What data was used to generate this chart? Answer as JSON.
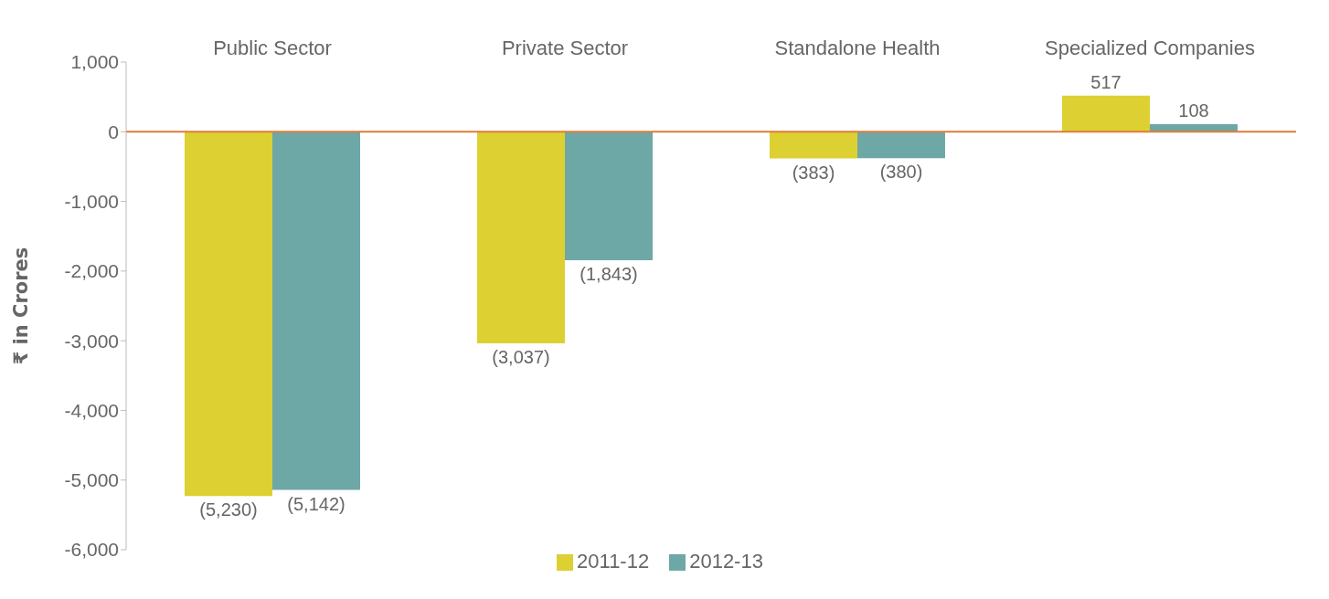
{
  "chart_data": {
    "type": "bar",
    "categories": [
      "Public Sector",
      "Private Sector",
      "Standalone Health",
      "Specialized Companies"
    ],
    "series": [
      {
        "name": "2011-12",
        "color": "#dcd032",
        "values": [
          -5230,
          -3037,
          -383,
          517
        ],
        "value_labels": [
          "(5,230)",
          "(3,037)",
          "(383)",
          "517"
        ]
      },
      {
        "name": "2012-13",
        "color": "#6ea8a6",
        "values": [
          -5142,
          -1843,
          -380,
          108
        ],
        "value_labels": [
          "(5,142)",
          "(1,843)",
          "(380)",
          "108"
        ]
      }
    ],
    "ylabel": "₹ in Crores",
    "ylim": [
      -6000,
      1000
    ],
    "yticks": [
      {
        "value": -6000,
        "label": "-6,000"
      },
      {
        "value": -5000,
        "label": "-5,000"
      },
      {
        "value": -4000,
        "label": "-4,000"
      },
      {
        "value": -3000,
        "label": "-3,000"
      },
      {
        "value": -2000,
        "label": "-2,000"
      },
      {
        "value": -1000,
        "label": "-1,000"
      },
      0,
      {
        "value": 1000,
        "label": "1,000"
      }
    ],
    "ref_lines": [
      {
        "axis": "y",
        "value": 0,
        "color": "#e07b39"
      }
    ],
    "grid": false,
    "legend": "bottom"
  }
}
